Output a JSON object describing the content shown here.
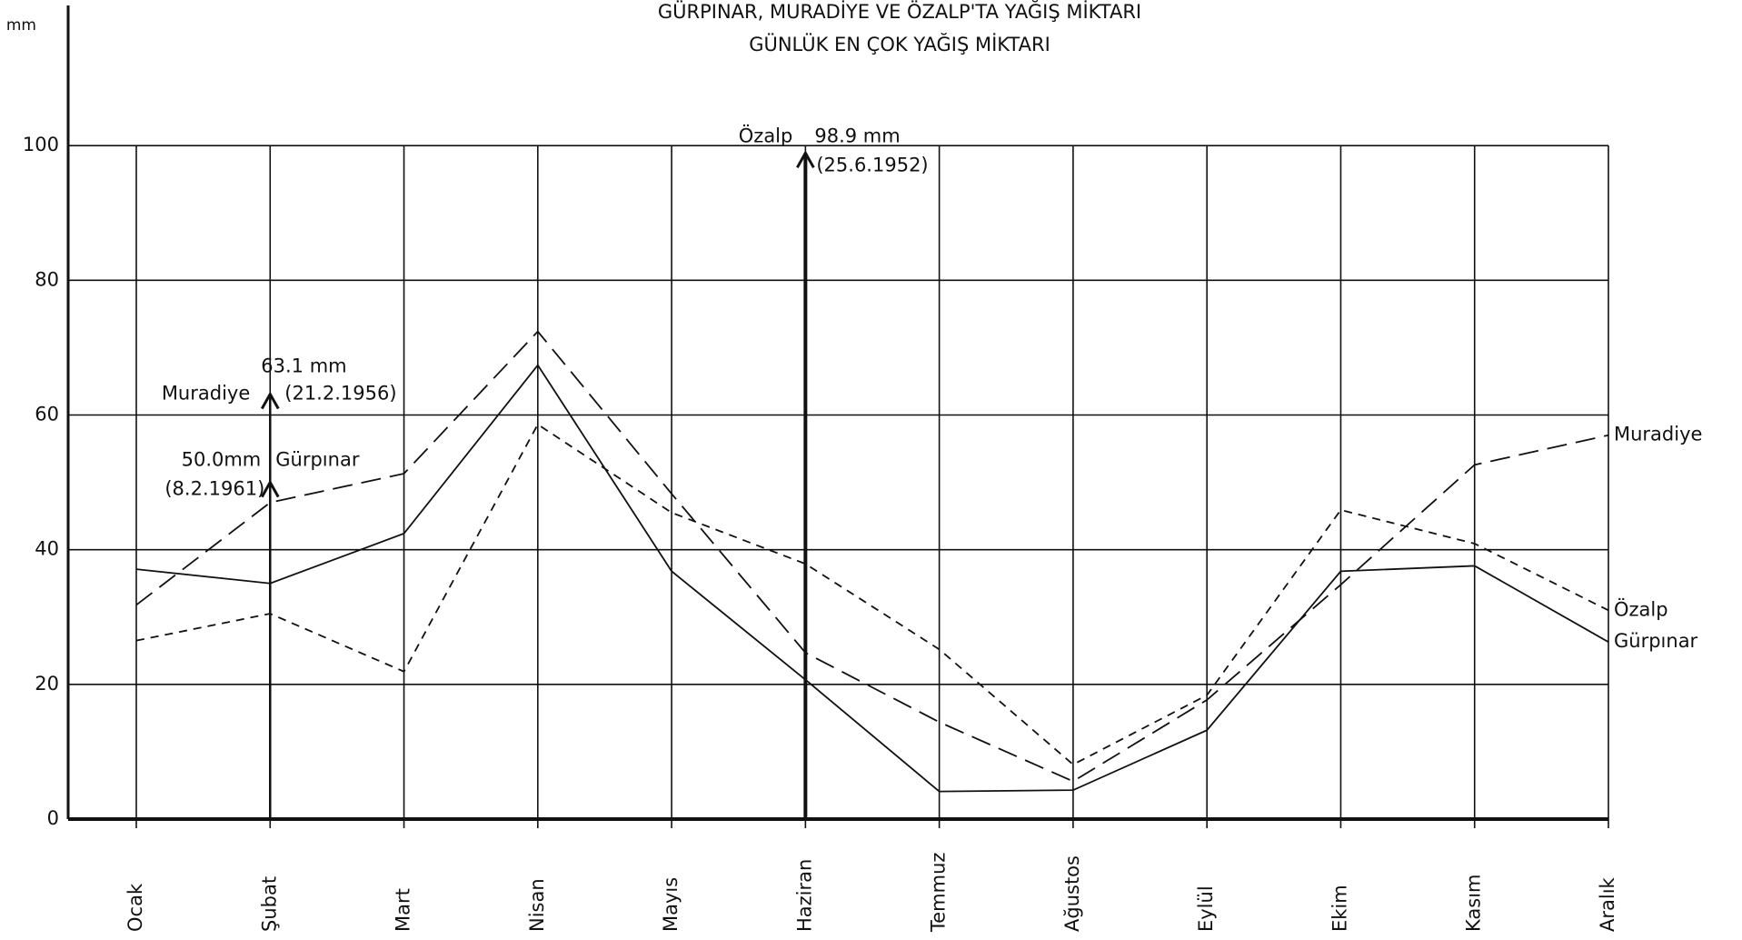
{
  "chart_data": {
    "type": "line",
    "title": "GÜRPINAR, MURADİYE VE ÖZALP'TA YAĞIŞ MİKTARI",
    "subtitle": "GÜNLÜK EN ÇOK YAĞIŞ MİKTARI",
    "y_label": "mm",
    "categories": [
      "Ocak",
      "Şubat",
      "Mart",
      "Nisan",
      "Mayıs",
      "Haziran",
      "Temmuz",
      "Ağustos",
      "Eylül",
      "Ekim",
      "Kasım",
      "Aralık"
    ],
    "series": [
      {
        "name": "Gürpınar",
        "color": "#111111",
        "line_style": "solid",
        "values": [
          37.1,
          35.0,
          42.4,
          67.4,
          36.8,
          20.7,
          4.1,
          4.3,
          13.2,
          36.8,
          37.6,
          26.3
        ]
      },
      {
        "name": "Muradiye",
        "color": "#111111",
        "line_style": "dashed",
        "values": [
          31.8,
          47.0,
          51.3,
          72.4,
          48.3,
          24.7,
          14.4,
          5.6,
          17.7,
          34.8,
          52.6,
          57.0
        ]
      },
      {
        "name": "Özalp",
        "color": "#111111",
        "line_style": "dotted",
        "values": [
          26.5,
          30.5,
          21.9,
          58.6,
          45.5,
          37.9,
          25.2,
          8.1,
          18.4,
          45.9,
          40.9,
          31.0
        ]
      }
    ],
    "extremes": [
      {
        "station": "Özalp",
        "value": 98.9,
        "value_label": "98.9 mm",
        "date": "(25.6.1952)",
        "category": "Haziran"
      },
      {
        "station": "Muradiye",
        "value": 63.1,
        "value_label": "63.1 mm",
        "date": "(21.2.1956)",
        "category": "Şubat"
      },
      {
        "station": "Gürpınar",
        "value": 50.0,
        "value_label": "50.0mm",
        "date": "(8.2.1961)",
        "category": "Şubat"
      }
    ],
    "ylim": [
      0,
      120
    ],
    "yticks": [
      0,
      20,
      40,
      60,
      80,
      100
    ],
    "grid": true
  }
}
